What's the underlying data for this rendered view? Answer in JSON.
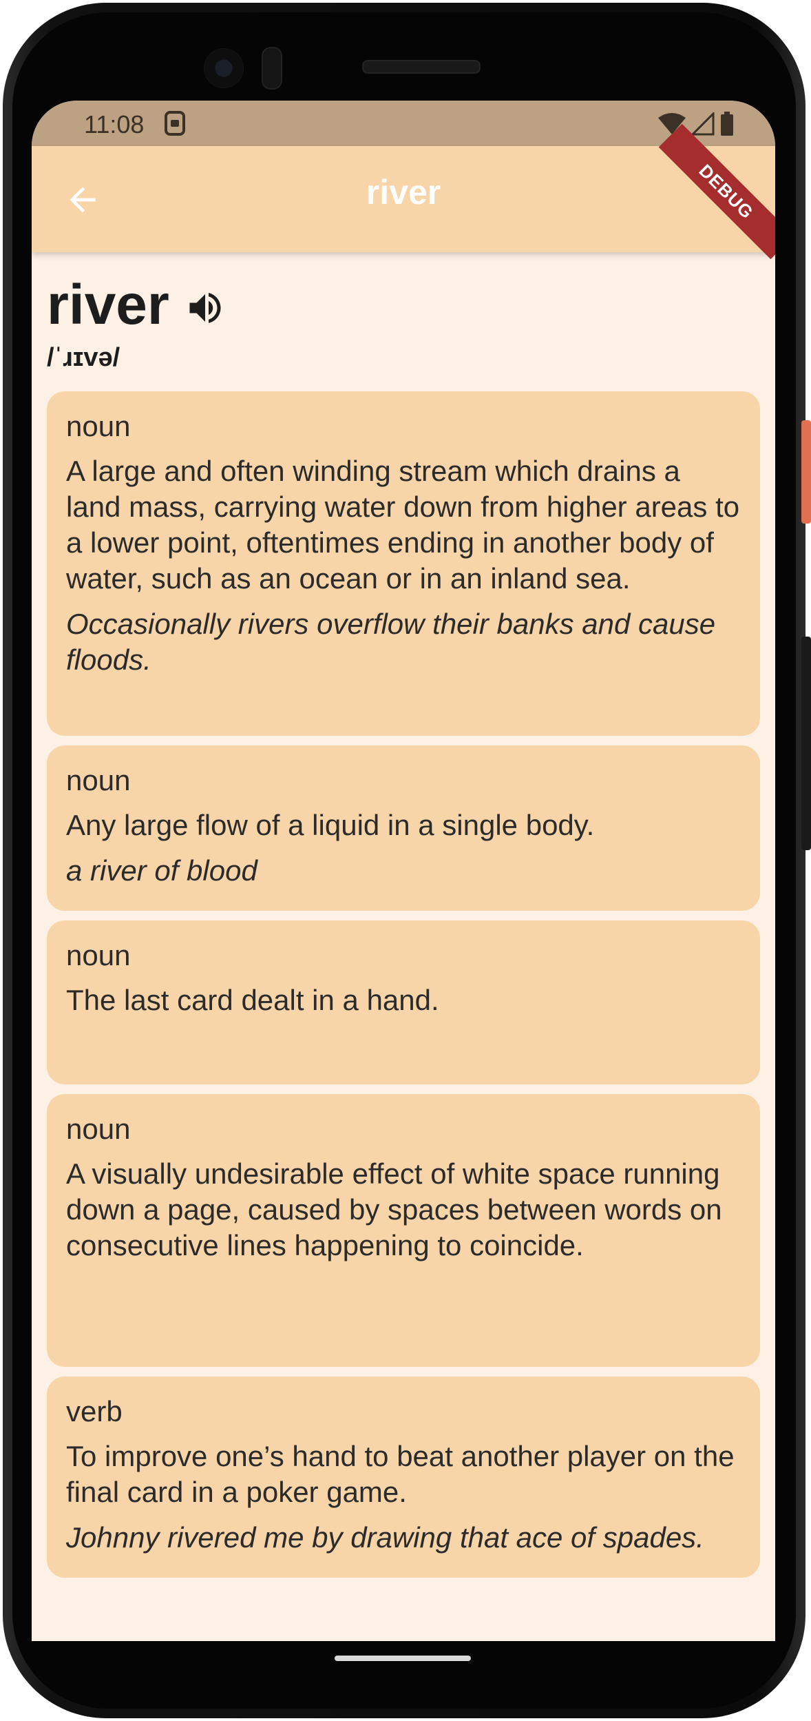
{
  "status_bar": {
    "time": "11:08",
    "icons": [
      "sim-icon",
      "wifi-icon",
      "signal-icon",
      "battery-icon"
    ]
  },
  "app_bar": {
    "title": "river",
    "back_icon": "arrow-back-icon",
    "debug_label": "DEBUG"
  },
  "entry": {
    "word": "river",
    "phonetic": "/ˈɹɪvə/",
    "audio_icon": "volume-up-icon"
  },
  "meanings": [
    {
      "part_of_speech": "noun",
      "definition": "A large and often winding stream which drains a land mass, carrying water down from higher areas to a lower point, oftentimes ending in another body of water, such as an ocean or in an inland sea.",
      "example": "Occasionally rivers overflow their banks and cause floods."
    },
    {
      "part_of_speech": "noun",
      "definition": "Any large flow of a liquid in a single body.",
      "example": "a river of blood"
    },
    {
      "part_of_speech": "noun",
      "definition": "The last card dealt in a hand.",
      "example": ""
    },
    {
      "part_of_speech": "noun",
      "definition": "A visually undesirable effect of white space running down a page, caused by spaces between words on consecutive lines happening to coincide.",
      "example": ""
    },
    {
      "part_of_speech": "verb",
      "definition": "To improve one’s hand to beat another player on the final card in a poker game.",
      "example": "Johnny rivered me by drawing that ace of spades."
    }
  ],
  "colors": {
    "app_bar": "#f8d4a9",
    "card": "#f8d4a9",
    "background": "#fdf0e4",
    "status_bar": "#bca182",
    "debug_banner": "#a52d2d"
  }
}
